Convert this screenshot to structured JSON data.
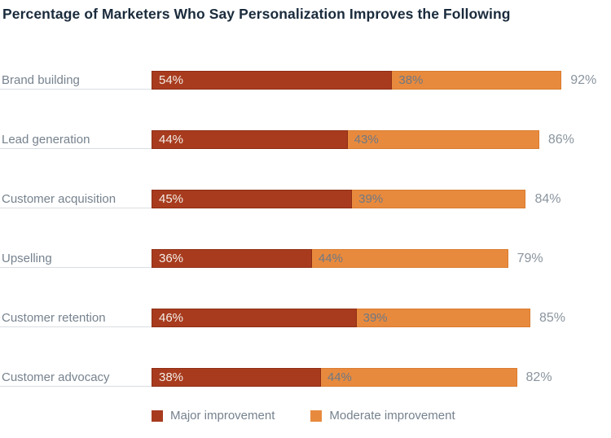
{
  "page": {
    "background": "#FFFFFF"
  },
  "colors": {
    "major": "#A83B1E",
    "major_border": "#8F2D14",
    "moderate": "#E88A3E",
    "moderate_border": "#D87C30",
    "title_text": "#1A2B3C",
    "gray_text": "#76828E",
    "total_text": "#8A949E",
    "baseline": "#D9DDE1",
    "major_value_text": "#F4EEE7",
    "moderate_value_text": "#6E7984"
  },
  "chart_data": {
    "type": "bar",
    "orientation": "horizontal",
    "stacked": true,
    "title": "Percentage of Marketers Who Say Personalization Improves the Following",
    "categories": [
      "Brand building",
      "Lead generation",
      "Customer acquisition",
      "Upselling",
      "Customer retention",
      "Customer advocacy"
    ],
    "series": [
      {
        "name": "Major improvement",
        "color": "#A83B1E",
        "values": [
          54,
          44,
          45,
          36,
          46,
          38
        ]
      },
      {
        "name": "Moderate improvement",
        "color": "#E88A3E",
        "values": [
          38,
          43,
          39,
          44,
          39,
          44
        ]
      }
    ],
    "totals": [
      "92%",
      "86%",
      "84%",
      "79%",
      "85%",
      "82%"
    ],
    "value_suffix": "%",
    "xlim": [
      0,
      100
    ],
    "grid": false,
    "legend_position": "bottom"
  }
}
